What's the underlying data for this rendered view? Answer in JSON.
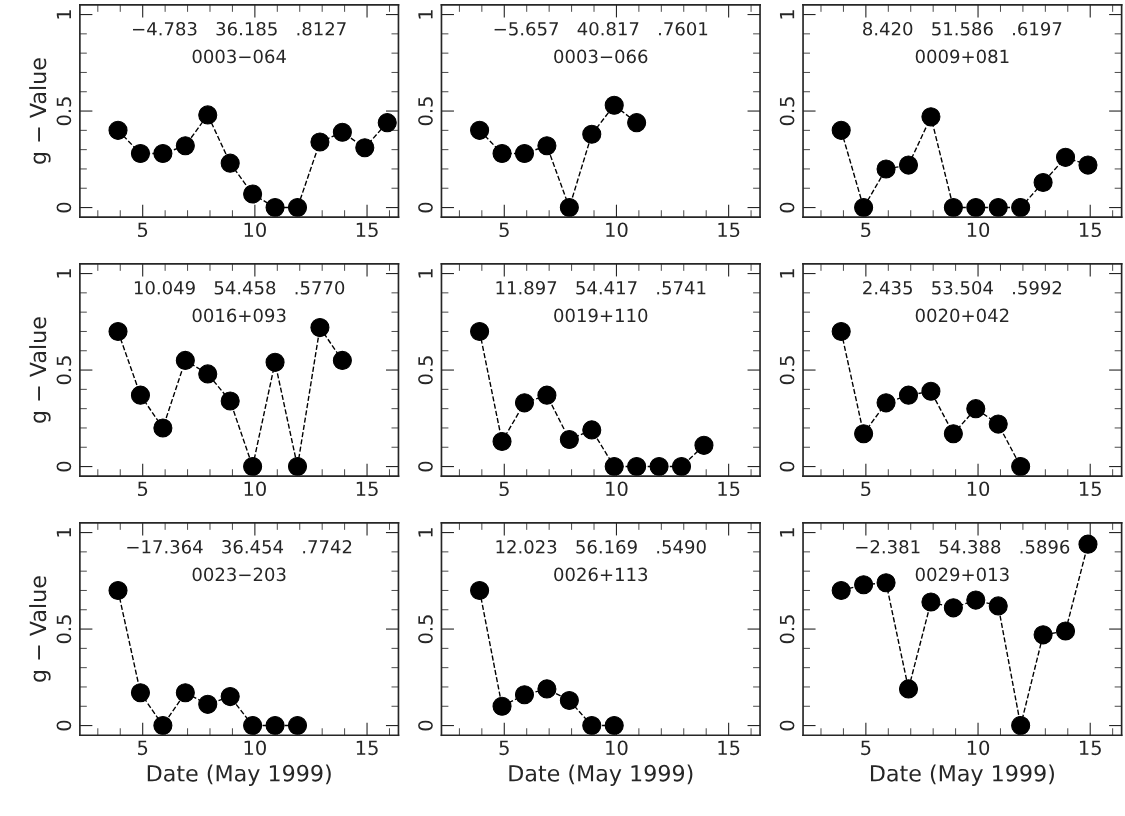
{
  "chart_data": [
    {
      "type": "line",
      "x": [
        3.9,
        4.9,
        5.9,
        6.9,
        7.9,
        8.9,
        9.9,
        10.9,
        11.9,
        12.9,
        13.9,
        14.9,
        15.9
      ],
      "values": [
        0.4,
        0.28,
        0.28,
        0.32,
        0.48,
        0.23,
        0.07,
        0,
        0,
        0.34,
        0.39,
        0.31,
        0.44
      ],
      "color": "#000000",
      "marker": "circle",
      "line_style": "dashed",
      "xlim": [
        2.2,
        16.4
      ],
      "ylim": [
        -0.05,
        1.05
      ],
      "xticks": [
        5,
        10,
        15
      ],
      "yticks": [
        0,
        0.5,
        1
      ],
      "ylabel": "g − Value",
      "annotations": [
        "−4.783   36.185   .8127",
        "0003−064"
      ]
    },
    {
      "type": "line",
      "x": [
        3.9,
        4.9,
        5.9,
        6.9,
        7.9,
        8.9,
        9.9,
        10.9
      ],
      "values": [
        0.4,
        0.28,
        0.28,
        0.32,
        0,
        0.38,
        0.53,
        0.44
      ],
      "color": "#000000",
      "marker": "circle",
      "line_style": "dashed",
      "xlim": [
        2.2,
        16.4
      ],
      "ylim": [
        -0.05,
        1.05
      ],
      "xticks": [
        5,
        10,
        15
      ],
      "yticks": [
        0,
        0.5,
        1
      ],
      "annotations": [
        "−5.657   40.817   .7601",
        "0003−066"
      ]
    },
    {
      "type": "line",
      "x": [
        3.9,
        4.9,
        5.9,
        6.9,
        7.9,
        8.9,
        9.9,
        10.9,
        11.9,
        12.9,
        13.9,
        14.9
      ],
      "values": [
        0.4,
        0,
        0.2,
        0.22,
        0.47,
        0,
        0,
        0,
        0,
        0.13,
        0.26,
        0.22
      ],
      "color": "#000000",
      "marker": "circle",
      "line_style": "dashed",
      "xlim": [
        2.2,
        16.4
      ],
      "ylim": [
        -0.05,
        1.05
      ],
      "xticks": [
        5,
        10,
        15
      ],
      "yticks": [
        0,
        0.5,
        1
      ],
      "annotations": [
        "8.420   51.586   .6197",
        "0009+081"
      ]
    },
    {
      "type": "line",
      "x": [
        3.9,
        4.9,
        5.9,
        6.9,
        7.9,
        8.9,
        9.9,
        10.9,
        11.9,
        12.9,
        13.9
      ],
      "values": [
        0.7,
        0.37,
        0.2,
        0.55,
        0.48,
        0.34,
        0,
        0.54,
        0,
        0.72,
        0.55
      ],
      "color": "#000000",
      "marker": "circle",
      "line_style": "dashed",
      "xlim": [
        2.2,
        16.4
      ],
      "ylim": [
        -0.05,
        1.05
      ],
      "xticks": [
        5,
        10,
        15
      ],
      "yticks": [
        0,
        0.5,
        1
      ],
      "ylabel": "g − Value",
      "annotations": [
        "10.049   54.458   .5770",
        "0016+093"
      ]
    },
    {
      "type": "line",
      "x": [
        3.9,
        4.9,
        5.9,
        6.9,
        7.9,
        8.9,
        9.9,
        10.9,
        11.9,
        12.9,
        13.9
      ],
      "values": [
        0.7,
        0.13,
        0.33,
        0.37,
        0.14,
        0.19,
        0,
        0,
        0,
        0,
        0.11
      ],
      "color": "#000000",
      "marker": "circle",
      "line_style": "dashed",
      "xlim": [
        2.2,
        16.4
      ],
      "ylim": [
        -0.05,
        1.05
      ],
      "xticks": [
        5,
        10,
        15
      ],
      "yticks": [
        0,
        0.5,
        1
      ],
      "annotations": [
        "11.897   54.417   .5741",
        "0019+110"
      ]
    },
    {
      "type": "line",
      "x": [
        3.9,
        4.9,
        5.9,
        6.9,
        7.9,
        8.9,
        9.9,
        10.9,
        11.9
      ],
      "values": [
        0.7,
        0.17,
        0.33,
        0.37,
        0.39,
        0.17,
        0.3,
        0.22,
        0
      ],
      "color": "#000000",
      "marker": "circle",
      "line_style": "dashed",
      "xlim": [
        2.2,
        16.4
      ],
      "ylim": [
        -0.05,
        1.05
      ],
      "xticks": [
        5,
        10,
        15
      ],
      "yticks": [
        0,
        0.5,
        1
      ],
      "annotations": [
        "2.435   53.504   .5992",
        "0020+042"
      ]
    },
    {
      "type": "line",
      "x": [
        3.9,
        4.9,
        5.9,
        6.9,
        7.9,
        8.9,
        9.9,
        10.9,
        11.9
      ],
      "values": [
        0.7,
        0.17,
        0,
        0.17,
        0.11,
        0.15,
        0,
        0,
        0
      ],
      "color": "#000000",
      "marker": "circle",
      "line_style": "dashed",
      "xlim": [
        2.2,
        16.4
      ],
      "ylim": [
        -0.05,
        1.05
      ],
      "xticks": [
        5,
        10,
        15
      ],
      "yticks": [
        0,
        0.5,
        1
      ],
      "xlabel": "Date (May 1999)",
      "ylabel": "g − Value",
      "annotations": [
        "−17.364   36.454   .7742",
        "0023−203"
      ]
    },
    {
      "type": "line",
      "x": [
        3.9,
        4.9,
        5.9,
        6.9,
        7.9,
        8.9,
        9.9
      ],
      "values": [
        0.7,
        0.1,
        0.16,
        0.19,
        0.13,
        0,
        0
      ],
      "color": "#000000",
      "marker": "circle",
      "line_style": "dashed",
      "xlim": [
        2.2,
        16.4
      ],
      "ylim": [
        -0.05,
        1.05
      ],
      "xticks": [
        5,
        10,
        15
      ],
      "yticks": [
        0,
        0.5,
        1
      ],
      "xlabel": "Date (May 1999)",
      "annotations": [
        "12.023   56.169   .5490",
        "0026+113"
      ]
    },
    {
      "type": "line",
      "x": [
        3.9,
        4.9,
        5.9,
        6.9,
        7.9,
        8.9,
        9.9,
        10.9,
        11.9,
        12.9,
        13.9,
        14.9
      ],
      "values": [
        0.7,
        0.73,
        0.74,
        0.19,
        0.64,
        0.61,
        0.65,
        0.62,
        0,
        0.47,
        0.49,
        0.94
      ],
      "color": "#000000",
      "marker": "circle",
      "line_style": "dashed",
      "xlim": [
        2.2,
        16.4
      ],
      "ylim": [
        -0.05,
        1.05
      ],
      "xticks": [
        5,
        10,
        15
      ],
      "yticks": [
        0,
        0.5,
        1
      ],
      "xlabel": "Date (May 1999)",
      "annotations": [
        "−2.381   54.388   .5896",
        "0029+013"
      ]
    }
  ]
}
